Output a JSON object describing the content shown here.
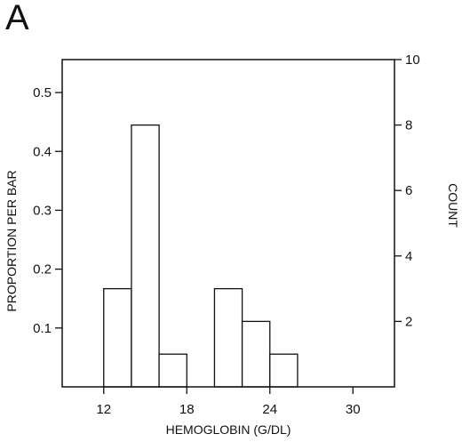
{
  "panel_label": "A",
  "chart_data": {
    "type": "bar",
    "xlabel": "HEMOGLOBIN (G/DL)",
    "ylabel_left": "PROPORTION PER BAR",
    "ylabel_right": "COUNT",
    "xlim": [
      9,
      33
    ],
    "ylim_left": [
      0,
      0.556
    ],
    "ylim_right": [
      0,
      10
    ],
    "x_ticks": [
      "12",
      "18",
      "24",
      "30"
    ],
    "x_tick_values": [
      12,
      18,
      24,
      30
    ],
    "y_left_ticks": [
      "0.1",
      "0.2",
      "0.3",
      "0.4",
      "0.5"
    ],
    "y_left_tick_values": [
      0.1,
      0.2,
      0.3,
      0.4,
      0.5
    ],
    "y_right_ticks": [
      "2",
      "4",
      "6",
      "8",
      "10"
    ],
    "y_right_tick_values": [
      2,
      4,
      6,
      8,
      10
    ],
    "bin_width": 2,
    "bins": [
      {
        "start": 12,
        "end": 14,
        "count": 3,
        "proportion": 0.167
      },
      {
        "start": 14,
        "end": 16,
        "count": 8,
        "proportion": 0.444
      },
      {
        "start": 16,
        "end": 18,
        "count": 1,
        "proportion": 0.056
      },
      {
        "start": 20,
        "end": 22,
        "count": 3,
        "proportion": 0.167
      },
      {
        "start": 22,
        "end": 24,
        "count": 2,
        "proportion": 0.111
      },
      {
        "start": 24,
        "end": 26,
        "count": 1,
        "proportion": 0.056
      }
    ],
    "grid": false,
    "legend": "none",
    "colors": {
      "bar_fill": "#ffffff",
      "stroke": "#111111"
    }
  }
}
